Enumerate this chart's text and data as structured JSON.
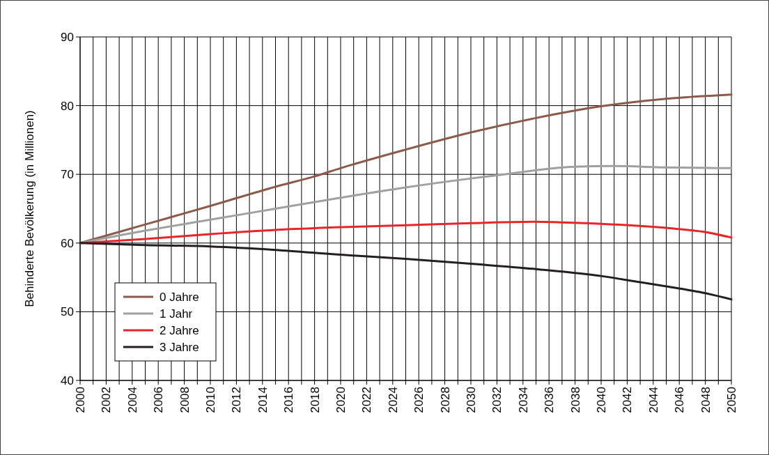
{
  "chart_data": {
    "type": "line",
    "ylabel": "Behinderte Bevölkerung (in Millionen)",
    "xlim": [
      2000,
      2050
    ],
    "ylim": [
      40,
      90
    ],
    "yticks": [
      40,
      50,
      60,
      70,
      80,
      90
    ],
    "xticks": [
      2000,
      {
        "value": 2001,
        "label": null
      },
      2002,
      {
        "value": 2003,
        "label": null
      },
      2004,
      {
        "value": 2005,
        "label": null
      },
      2006,
      {
        "value": 2007,
        "label": null
      },
      2008,
      {
        "value": 2009,
        "label": null
      },
      2010,
      {
        "value": 2011,
        "label": null
      },
      2012,
      {
        "value": 2013,
        "label": null
      },
      2014,
      {
        "value": 2015,
        "label": null
      },
      2016,
      {
        "value": 2017,
        "label": null
      },
      2018,
      {
        "value": 2019,
        "label": null
      },
      2020,
      {
        "value": 2021,
        "label": null
      },
      2022,
      {
        "value": 2023,
        "label": null
      },
      2024,
      {
        "value": 2025,
        "label": null
      },
      2026,
      {
        "value": 2027,
        "label": null
      },
      2028,
      {
        "value": 2029,
        "label": null
      },
      2030,
      {
        "value": 2031,
        "label": null
      },
      2032,
      {
        "value": 2033,
        "label": null
      },
      2034,
      {
        "value": 2035,
        "label": null
      },
      2036,
      {
        "value": 2037,
        "label": null
      },
      2038,
      {
        "value": 2039,
        "label": null
      },
      2040,
      {
        "value": 2041,
        "label": null
      },
      2042,
      {
        "value": 2043,
        "label": null
      },
      2044,
      {
        "value": 2045,
        "label": null
      },
      2046,
      {
        "value": 2047,
        "label": null
      },
      2048,
      {
        "value": 2049,
        "label": null
      },
      2050
    ],
    "grid": true,
    "legend": "bottom left",
    "marker": "none",
    "line_style": "solid",
    "series": [
      {
        "name": "0 Jahre",
        "color": "#8b5a4a",
        "x": [
          2000,
          2005,
          2010,
          2015,
          2018,
          2020,
          2025,
          2030,
          2035,
          2040,
          2045,
          2050
        ],
        "values": [
          60,
          62.7,
          65.4,
          68.2,
          69.7,
          70.9,
          73.6,
          76.1,
          78.2,
          79.9,
          81,
          81.6
        ]
      },
      {
        "name": "1 Jahr",
        "color": "#a0a0a0",
        "x": [
          2000,
          2005,
          2010,
          2015,
          2020,
          2025,
          2030,
          2033,
          2035,
          2038,
          2041,
          2045,
          2050
        ],
        "values": [
          60,
          61.8,
          63.4,
          65,
          66.6,
          68.1,
          69.4,
          70.1,
          70.6,
          71.1,
          71.2,
          71,
          70.9
        ]
      },
      {
        "name": "2 Jahre",
        "color": "#e8262a",
        "x": [
          2000,
          2005,
          2010,
          2015,
          2020,
          2025,
          2030,
          2035,
          2037,
          2040,
          2045,
          2048,
          2050
        ],
        "values": [
          60,
          60.6,
          61.3,
          61.9,
          62.3,
          62.6,
          62.9,
          63.1,
          63,
          62.8,
          62.2,
          61.6,
          60.8
        ]
      },
      {
        "name": "3 Jahre",
        "color": "#231f20",
        "x": [
          2000,
          2005,
          2010,
          2015,
          2020,
          2025,
          2030,
          2035,
          2040,
          2043,
          2045,
          2048,
          2050
        ],
        "values": [
          60,
          59.7,
          59.5,
          59,
          58.3,
          57.7,
          57,
          56.2,
          55.2,
          54.3,
          53.7,
          52.7,
          51.8
        ]
      }
    ]
  }
}
